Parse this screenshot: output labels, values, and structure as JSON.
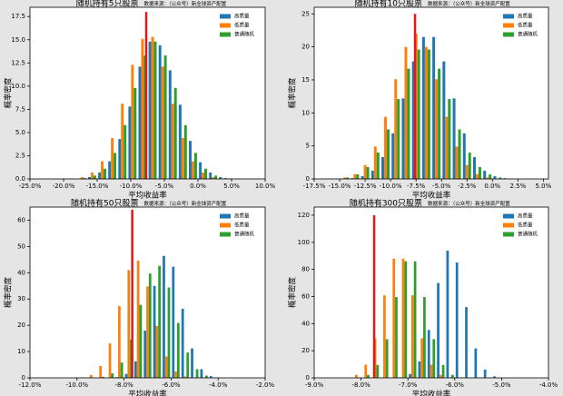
{
  "chart_data": [
    {
      "type": "histogram",
      "title": "随机持有5只股票",
      "annotation": "数据来源：（公众号）新全球资产配置",
      "xlabel": "平均收益率",
      "ylabel": "概率密度",
      "legend": "upper right",
      "bins": [
        -21,
        -19.5,
        -18,
        -16.5,
        -15,
        -13.5,
        -12,
        -10.5,
        -9,
        -7.5,
        -6,
        -4.5,
        -3,
        -1.5,
        0,
        1.5,
        3,
        4.5,
        6
      ],
      "series": [
        {
          "name": "高质量",
          "color": "#1f77b4",
          "values": [
            0,
            0.01,
            0.05,
            0.2,
            0.7,
            1.9,
            4.3,
            7.8,
            12.1,
            14.8,
            14.4,
            11.7,
            8.0,
            4.1,
            1.8,
            0.7,
            0.2,
            0.05
          ]
        },
        {
          "name": "低质量",
          "color": "#ff7f0e",
          "values": [
            0.01,
            0.05,
            0.2,
            0.7,
            1.9,
            4.4,
            8.1,
            12.3,
            15.1,
            15.3,
            12.1,
            8.1,
            4.4,
            1.9,
            0.7,
            0.2,
            0.05,
            0.01
          ]
        },
        {
          "name": "普通随机",
          "color": "#2ca02c",
          "values": [
            0,
            0.02,
            0.09,
            0.36,
            1.1,
            2.8,
            5.8,
            9.8,
            13.3,
            14.8,
            13.3,
            9.8,
            5.8,
            2.8,
            1.1,
            0.36,
            0.09,
            0.02
          ]
        }
      ],
      "reference_line": {
        "x": -7.7,
        "y": 18,
        "color": "#e8151b"
      },
      "xlim": [
        -25,
        10
      ],
      "xticks": [
        {
          "value": -25,
          "label": "-25.0%"
        },
        {
          "value": -20,
          "label": "-20.0%"
        },
        {
          "value": -15,
          "label": "-15.0%"
        },
        {
          "value": -10,
          "label": "-10.0%"
        },
        {
          "value": -5,
          "label": "-5.0%"
        },
        {
          "value": 0,
          "label": "0.0%"
        },
        {
          "value": 5,
          "label": "5.0%"
        },
        {
          "value": 10,
          "label": "10.0%"
        }
      ],
      "ylim": [
        0,
        18.5
      ],
      "yticks": [
        {
          "value": 0,
          "label": "0.0"
        },
        2.5,
        {
          "value": 5,
          "label": "5.0"
        },
        7.5,
        {
          "value": 10,
          "label": "10.0"
        },
        12.5,
        {
          "value": 15,
          "label": "15.0"
        },
        17.5
      ]
    },
    {
      "type": "histogram",
      "title": "随机持有10只股票",
      "annotation": "数据来源：（公众号）新全球资产配置",
      "xlabel": "平均收益率",
      "ylabel": "概率密度",
      "legend": "upper right",
      "bins": [
        -16,
        -15,
        -14,
        -13,
        -12,
        -11,
        -10,
        -9,
        -8,
        -7,
        -6,
        -5,
        -4,
        -3,
        -2,
        -1,
        0,
        1,
        2
      ],
      "series": [
        {
          "name": "高质量",
          "color": "#1f77b4",
          "values": [
            0,
            0.02,
            0.11,
            0.41,
            1.25,
            3.3,
            6.9,
            12.2,
            17.8,
            21.5,
            21.5,
            17.8,
            12.2,
            6.9,
            3.3,
            1.25,
            0.41,
            0.11
          ]
        },
        {
          "name": "低质量",
          "color": "#ff7f0e",
          "values": [
            0.05,
            0.22,
            0.73,
            2.1,
            4.9,
            9.4,
            15.1,
            20,
            22,
            20,
            15.1,
            9.4,
            4.9,
            2.1,
            0.73,
            0.22,
            0.05,
            0.01
          ]
        },
        {
          "name": "普通随机",
          "color": "#2ca02c",
          "values": [
            0.06,
            0.22,
            0.68,
            1.8,
            4.0,
            7.5,
            12.1,
            16.7,
            19.6,
            19.6,
            16.7,
            12.1,
            7.5,
            4.0,
            1.8,
            0.68,
            0.22,
            0.06
          ]
        }
      ],
      "reference_line": {
        "x": -7.6,
        "y": 25,
        "color": "#e8151b"
      },
      "xlim": [
        -17.5,
        5.5
      ],
      "xticks": [
        {
          "value": -17.5,
          "label": "-17.5%"
        },
        {
          "value": -15,
          "label": "-15.0%"
        },
        {
          "value": -12.5,
          "label": "-12.5%"
        },
        {
          "value": -10,
          "label": "-10.0%"
        },
        {
          "value": -7.5,
          "label": "-7.5%"
        },
        {
          "value": -5,
          "label": "-5.0%"
        },
        {
          "value": -2.5,
          "label": "-2.5%"
        },
        {
          "value": 0,
          "label": "0.0%"
        },
        {
          "value": 2.5,
          "label": "2.5%"
        },
        {
          "value": 5,
          "label": "5.0%"
        }
      ],
      "ylim": [
        0,
        26
      ],
      "yticks": [
        0,
        5,
        10,
        15,
        20,
        25
      ]
    },
    {
      "type": "histogram",
      "title": "随机持有50只股票",
      "annotation": "数据来源：（公众号）新全球资产配置",
      "xlabel": "平均收益率",
      "ylabel": "概率密度",
      "legend": "upper right",
      "bins": [
        -10,
        -9.6,
        -9.2,
        -8.8,
        -8.4,
        -8,
        -7.6,
        -7.2,
        -6.8,
        -6.4,
        -6,
        -5.6,
        -5.2,
        -4.8,
        -4.4,
        -4,
        -3.6
      ],
      "series": [
        {
          "name": "高质量",
          "color": "#1f77b4",
          "values": [
            0,
            0,
            0,
            0.03,
            0.25,
            1.5,
            6.3,
            18,
            35,
            46.4,
            42.3,
            26.3,
            11.2,
            3.3,
            0.66,
            0.09
          ]
        },
        {
          "name": "低质量",
          "color": "#ff7f0e",
          "values": [
            0.2,
            1.1,
            4.5,
            13.1,
            27.3,
            41,
            44.6,
            34.8,
            19.7,
            8.1,
            2.4,
            0.5,
            0.08,
            0,
            0,
            0
          ]
        },
        {
          "name": "普通随机",
          "color": "#2ca02c",
          "values": [
            0.01,
            0.06,
            0.39,
            1.7,
            5.8,
            14.6,
            27.8,
            39.7,
            42.6,
            34.4,
            20.9,
            9.6,
            3.3,
            0.85,
            0.16,
            0.03
          ]
        }
      ],
      "reference_line": {
        "x": -7.65,
        "y": 64,
        "color": "#e8151b"
      },
      "xlim": [
        -12,
        -2
      ],
      "xticks": [
        {
          "value": -12,
          "label": "-12.0%"
        },
        {
          "value": -10,
          "label": "-10.0%"
        },
        {
          "value": -8,
          "label": "-8.0%"
        },
        {
          "value": -6,
          "label": "-6.0%"
        },
        {
          "value": -4,
          "label": "-4.0%"
        },
        {
          "value": -2,
          "label": "-2.0%"
        }
      ],
      "ylim": [
        0,
        65
      ],
      "yticks": [
        0,
        10,
        20,
        30,
        40,
        50,
        60
      ]
    },
    {
      "type": "histogram",
      "title": "随机持有300只股票",
      "annotation": "数据来源：（公众号）新全球资产配置",
      "xlabel": "平均收益率",
      "ylabel": "概率密度",
      "legend": "upper right",
      "bins": [
        -8.2,
        -8,
        -7.8,
        -7.6,
        -7.4,
        -7.2,
        -7,
        -6.8,
        -6.6,
        -6.4,
        -6.2,
        -6,
        -5.8,
        -5.6,
        -5.4,
        -5.2,
        -5
      ],
      "series": [
        {
          "name": "高质量",
          "color": "#1f77b4",
          "values": [
            0,
            0,
            0,
            0,
            0.05,
            0.44,
            2.8,
            12.1,
            35.3,
            70,
            93.9,
            85.1,
            52.2,
            21.7,
            6.1,
            1.1
          ]
        },
        {
          "name": "低质量",
          "color": "#ff7f0e",
          "values": [
            2.2,
            9.7,
            29.2,
            60.9,
            87.9,
            87.9,
            60.9,
            29.2,
            9.7,
            2.2,
            0.36,
            0.04,
            0,
            0,
            0,
            0
          ]
        },
        {
          "name": "普通随机",
          "color": "#2ca02c",
          "values": [
            0.35,
            2.2,
            9.5,
            28.5,
            59.6,
            86,
            86,
            59.6,
            28.5,
            9.5,
            2.2,
            0.35,
            0.04,
            0,
            0,
            0
          ]
        }
      ],
      "reference_line": {
        "x": -7.72,
        "y": 120,
        "color": "#e8151b"
      },
      "xlim": [
        -9,
        -4
      ],
      "xticks": [
        {
          "value": -9,
          "label": "-9.0%"
        },
        {
          "value": -8,
          "label": "-8.0%"
        },
        {
          "value": -7,
          "label": "-7.0%"
        },
        {
          "value": -6,
          "label": "-6.0%"
        },
        {
          "value": -5,
          "label": "-5.0%"
        },
        {
          "value": -4,
          "label": "-4.0%"
        }
      ],
      "ylim": [
        0,
        126
      ],
      "yticks": [
        0,
        20,
        40,
        60,
        80,
        100,
        120
      ]
    }
  ]
}
